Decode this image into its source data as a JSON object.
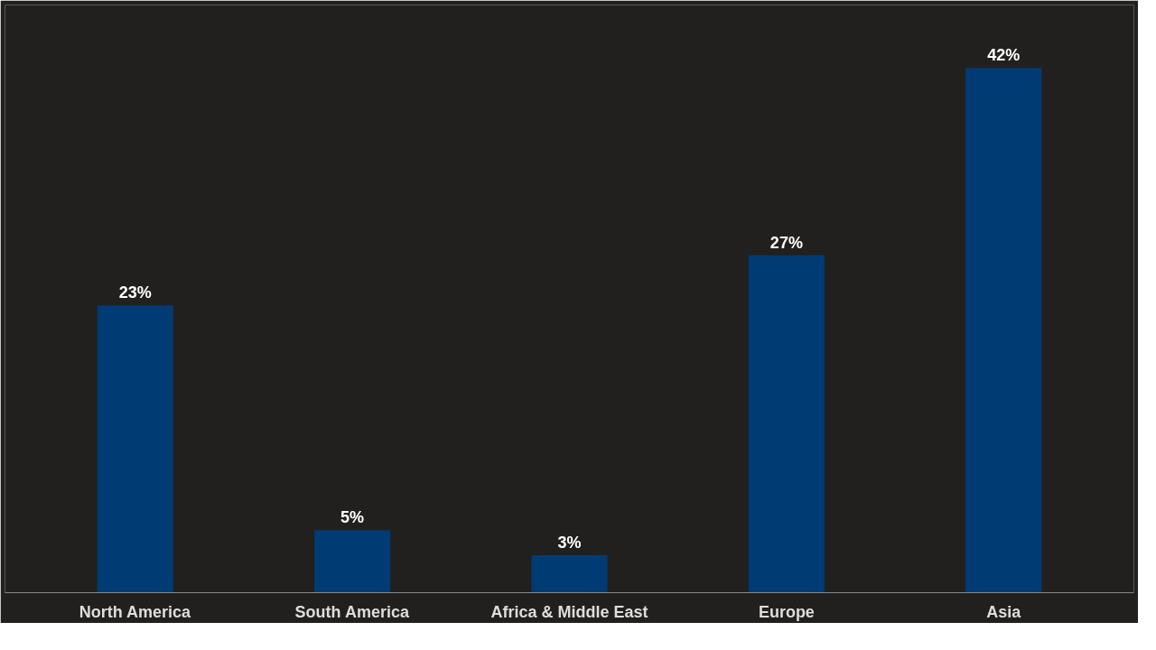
{
  "chart_data": {
    "type": "bar",
    "categories": [
      "North America",
      "South America",
      "Africa & Middle East",
      "Europe",
      "Asia"
    ],
    "values": [
      23,
      5,
      3,
      27,
      42
    ],
    "value_labels": [
      "23%",
      "5%",
      "3%",
      "27%",
      "42%"
    ],
    "color": "#003b73",
    "grid": false,
    "tick_labels": "x"
  }
}
